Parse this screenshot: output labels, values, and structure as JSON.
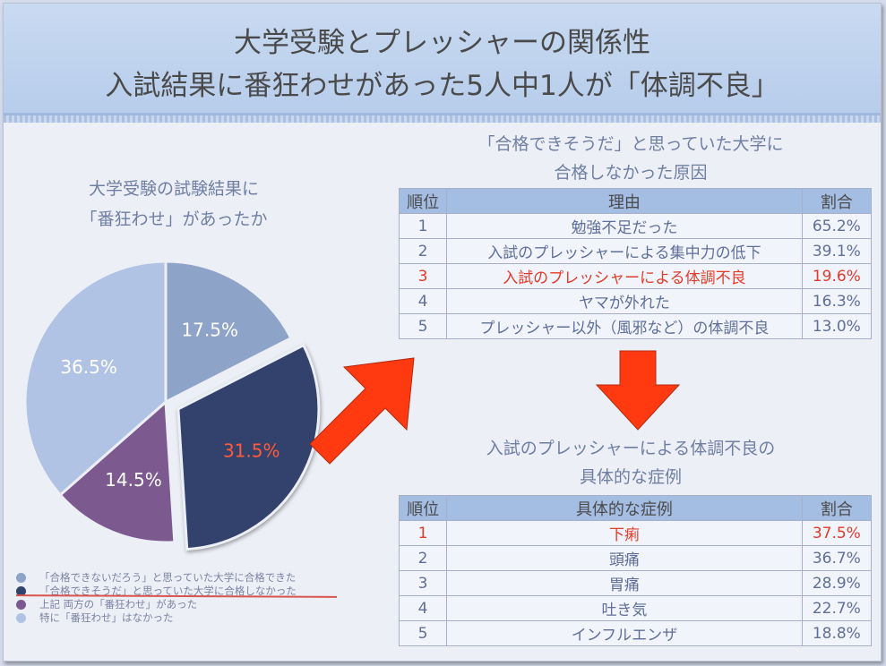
{
  "header": {
    "title_line1": "大学受験とプレッシャーの関係性",
    "title_line2": "入試結果に番狂わせがあった5人中1人が「体調不良」"
  },
  "pie_section": {
    "question_line1": "大学受験の試験結果に",
    "question_line2": "「番狂わせ」があったか"
  },
  "chart_data": {
    "type": "pie",
    "slices": [
      {
        "label": "「合格できないだろう」と思っていた大学に合格できた",
        "value": 17.5,
        "display": "17.5%",
        "color": "#8da3c8",
        "label_color": "#ffffff"
      },
      {
        "label": "「合格できそうだ」と思っていた大学に合格しなかった",
        "value": 31.5,
        "display": "31.5%",
        "color": "#33426c",
        "label_color": "#ff5a3c",
        "exploded": true
      },
      {
        "label": "上記 両方の「番狂わせ」があった",
        "value": 14.5,
        "display": "14.5%",
        "color": "#7c5a90",
        "label_color": "#ffffff"
      },
      {
        "label": "特に「番狂わせ」はなかった",
        "value": 36.5,
        "display": "36.5%",
        "color": "#b1c3e4",
        "label_color": "#ffffff"
      }
    ],
    "legend_position": "bottom-left"
  },
  "table1": {
    "caption_line1": "「合格できそうだ」と思っていた大学に",
    "caption_line2": "合格しなかった原因",
    "headers": [
      "順位",
      "理由",
      "割合"
    ],
    "rows": [
      {
        "rank": "1",
        "label": "勉強不足だった",
        "pct": "65.2%"
      },
      {
        "rank": "2",
        "label": "入試のプレッシャーによる集中力の低下",
        "pct": "39.1%"
      },
      {
        "rank": "3",
        "label": "入試のプレッシャーによる体調不良",
        "pct": "19.6%"
      },
      {
        "rank": "4",
        "label": "ヤマが外れた",
        "pct": "16.3%"
      },
      {
        "rank": "5",
        "label": "プレッシャー以外（風邪など）の体調不良",
        "pct": "13.0%"
      }
    ],
    "highlight_rank": "3"
  },
  "table2": {
    "caption_line1": "入試のプレッシャーによる体調不良の",
    "caption_line2": "具体的な症例",
    "headers": [
      "順位",
      "具体的な症例",
      "割合"
    ],
    "rows": [
      {
        "rank": "1",
        "label": "下痢",
        "pct": "37.5%"
      },
      {
        "rank": "2",
        "label": "頭痛",
        "pct": "36.7%"
      },
      {
        "rank": "3",
        "label": "胃痛",
        "pct": "28.9%"
      },
      {
        "rank": "4",
        "label": "吐き気",
        "pct": "22.7%"
      },
      {
        "rank": "5",
        "label": "インフルエンザ",
        "pct": "18.8%"
      }
    ],
    "highlight_rank": "1"
  },
  "colors": {
    "arrow": "#ff3a10",
    "highlight_text": "#e33b2a",
    "table_header": "#a3bde3",
    "header_bg": "#c2d5ef"
  }
}
